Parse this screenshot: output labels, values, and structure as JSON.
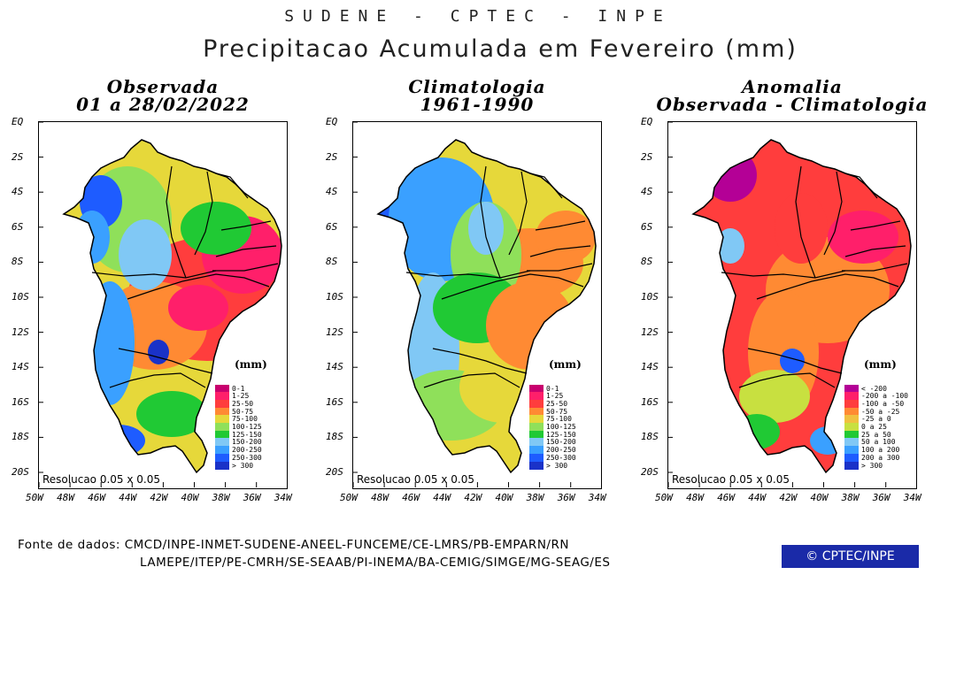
{
  "header": {
    "source_line": "SUDENE - CPTEC - INPE",
    "title": "Precipitacao Acumulada em Fevereiro (mm)"
  },
  "panels": [
    {
      "title_1": "Observada",
      "title_2": "01 a 28/02/2022",
      "resolution": "Resolucao 0.05 x 0.05",
      "units": "(mm)",
      "legend": [
        {
          "label": "0-1",
          "color": "#c8006e"
        },
        {
          "label": "1-25",
          "color": "#ff1f6a"
        },
        {
          "label": "25-50",
          "color": "#ff3d3d"
        },
        {
          "label": "50-75",
          "color": "#ff8a33"
        },
        {
          "label": "75-100",
          "color": "#e6d83a"
        },
        {
          "label": "100-125",
          "color": "#8fe05a"
        },
        {
          "label": "125-150",
          "color": "#20c934"
        },
        {
          "label": "150-200",
          "color": "#80c8f5"
        },
        {
          "label": "200-250",
          "color": "#3aa0ff"
        },
        {
          "label": "250-300",
          "color": "#1e5cff"
        },
        {
          "label": "> 300",
          "color": "#1a32c8"
        }
      ]
    },
    {
      "title_1": "Climatologia",
      "title_2": "1961-1990",
      "resolution": "Resolucao 0.05 x 0.05",
      "units": "(mm)",
      "legend": [
        {
          "label": "0-1",
          "color": "#c8006e"
        },
        {
          "label": "1-25",
          "color": "#ff1f6a"
        },
        {
          "label": "25-50",
          "color": "#ff3d3d"
        },
        {
          "label": "50-75",
          "color": "#ff8a33"
        },
        {
          "label": "75-100",
          "color": "#e6d83a"
        },
        {
          "label": "100-125",
          "color": "#8fe05a"
        },
        {
          "label": "125-150",
          "color": "#20c934"
        },
        {
          "label": "150-200",
          "color": "#80c8f5"
        },
        {
          "label": "200-250",
          "color": "#3aa0ff"
        },
        {
          "label": "250-300",
          "color": "#1e5cff"
        },
        {
          "label": "> 300",
          "color": "#1a32c8"
        }
      ]
    },
    {
      "title_1": "Anomalia",
      "title_2": "Observada - Climatologia",
      "resolution": "Resolucao 0.05 x 0.05",
      "units": "(mm)",
      "legend": [
        {
          "label": "< -200",
          "color": "#b40096"
        },
        {
          "label": "-200 a -100",
          "color": "#ff1f6a"
        },
        {
          "label": "-100 a -50",
          "color": "#ff3d3d"
        },
        {
          "label": "-50 a -25",
          "color": "#ff8a33"
        },
        {
          "label": "-25 a 0",
          "color": "#f0c040"
        },
        {
          "label": "0 a 25",
          "color": "#c8e040"
        },
        {
          "label": "25 a 50",
          "color": "#20c934"
        },
        {
          "label": "50 a 100",
          "color": "#80c8f5"
        },
        {
          "label": "100 a 200",
          "color": "#3aa0ff"
        },
        {
          "label": "200 a 300",
          "color": "#1e5cff"
        },
        {
          "label": "> 300",
          "color": "#1a32c8"
        }
      ]
    }
  ],
  "axes": {
    "y_ticks": [
      "EQ",
      "2S",
      "4S",
      "6S",
      "8S",
      "10S",
      "12S",
      "14S",
      "16S",
      "18S",
      "20S"
    ],
    "x_ticks": [
      "50W",
      "48W",
      "46W",
      "44W",
      "42W",
      "40W",
      "38W",
      "36W",
      "34W"
    ]
  },
  "footer": {
    "sources_label": "Fonte de dados:",
    "sources_line1": "CMCD/INPE-INMET-SUDENE-ANEEL-FUNCEME/CE-LMRS/PB-EMPARN/RN",
    "sources_line2": "LAMEPE/ITEP/PE-CMRH/SE-SEAAB/PI-INEMA/BA-CEMIG/SIMGE/MG-SEAG/ES",
    "badge": "© CPTEC/INPE"
  }
}
